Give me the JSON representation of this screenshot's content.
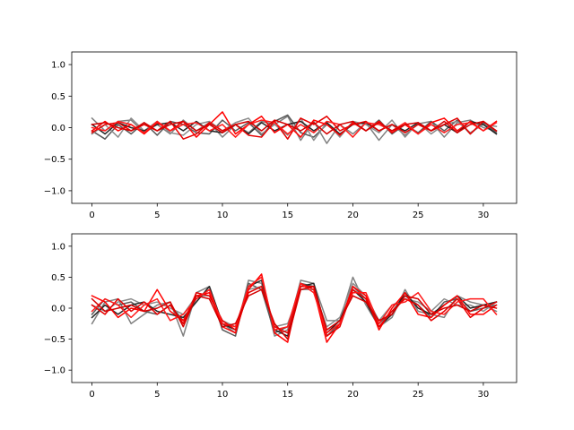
{
  "chart_data": [
    {
      "type": "line",
      "x": [
        0,
        1,
        2,
        3,
        4,
        5,
        6,
        7,
        8,
        9,
        10,
        11,
        12,
        13,
        14,
        15,
        16,
        17,
        18,
        19,
        20,
        21,
        22,
        23,
        24,
        25,
        26,
        27,
        28,
        29,
        30,
        31
      ],
      "xlim": [
        -1.55,
        32.55
      ],
      "ylim": [
        -1.2,
        1.2
      ],
      "xticks": [
        0,
        5,
        10,
        15,
        20,
        25,
        30
      ],
      "yticks": [
        -1.0,
        -0.5,
        0.0,
        0.5,
        1.0
      ],
      "xtick_labels": [
        "0",
        "5",
        "10",
        "15",
        "20",
        "25",
        "30"
      ],
      "ytick_labels": [
        "−1.0",
        "−0.5",
        "0.0",
        "0.5",
        "1.0"
      ],
      "grid": false,
      "series": [
        {
          "color": "#808080",
          "values": [
            0.15,
            -0.05,
            0.1,
            0.12,
            -0.08,
            0.05,
            -0.1,
            0.12,
            -0.05,
            0.08,
            -0.15,
            0.05,
            -0.08,
            0.1,
            0.05,
            0.18,
            -0.2,
            0.1,
            -0.25,
            0.05,
            -0.1,
            0.08,
            -0.2,
            0.05,
            -0.12,
            0.06,
            0.1,
            -0.15,
            0.08,
            0.12,
            0.0,
            -0.05
          ]
        },
        {
          "color": "#595959",
          "values": [
            -0.05,
            -0.18,
            0.05,
            -0.1,
            0.08,
            -0.12,
            0.1,
            0.05,
            -0.08,
            -0.1,
            0.12,
            -0.05,
            0.08,
            -0.12,
            0.1,
            0.2,
            -0.08,
            -0.15,
            0.05,
            -0.12,
            0.08,
            -0.05,
            0.12,
            -0.1,
            0.05,
            -0.08,
            0.1,
            -0.05,
            0.12,
            -0.1,
            0.08,
            -0.08
          ]
        },
        {
          "color": "#8c8c8c",
          "values": [
            -0.1,
            0.05,
            -0.15,
            0.15,
            -0.05,
            0.1,
            -0.08,
            -0.12,
            0.05,
            0.1,
            -0.05,
            0.08,
            0.15,
            -0.1,
            0.05,
            -0.12,
            0.15,
            -0.2,
            0.08,
            -0.15,
            0.1,
            0.05,
            -0.08,
            0.12,
            -0.15,
            0.08,
            -0.1,
            0.05,
            0.1,
            -0.08,
            0.05,
            0.02
          ]
        },
        {
          "color": "#262626",
          "values": [
            0.05,
            -0.1,
            0.08,
            0.0,
            -0.05,
            0.05,
            0.08,
            -0.05,
            0.1,
            -0.05,
            -0.08,
            0.05,
            -0.1,
            0.08,
            -0.05,
            0.05,
            0.1,
            -0.05,
            0.08,
            -0.1,
            0.05,
            0.08,
            -0.05,
            0.05,
            -0.05,
            0.08,
            -0.05,
            0.05,
            -0.08,
            0.1,
            0.05,
            -0.1
          ]
        },
        {
          "color": "#ff0000",
          "values": [
            -0.05,
            0.1,
            -0.05,
            0.05,
            -0.1,
            0.08,
            -0.05,
            0.1,
            -0.15,
            0.05,
            0.25,
            -0.1,
            0.05,
            0.18,
            -0.08,
            0.05,
            -0.15,
            0.12,
            0.05,
            -0.12,
            0.08,
            -0.05,
            0.1,
            -0.08,
            0.05,
            -0.1,
            0.08,
            0.15,
            -0.05,
            0.1,
            -0.05,
            0.1
          ]
        },
        {
          "color": "#e60000",
          "values": [
            -0.08,
            0.05,
            0.08,
            -0.05,
            0.05,
            -0.05,
            0.1,
            -0.18,
            -0.1,
            0.08,
            -0.05,
            0.05,
            -0.12,
            -0.15,
            0.1,
            -0.18,
            0.15,
            0.05,
            0.18,
            -0.05,
            0.05,
            0.1,
            -0.05,
            0.05,
            -0.08,
            0.05,
            -0.05,
            0.05,
            0.15,
            -0.1,
            0.1,
            -0.05
          ]
        },
        {
          "color": "#ff1a1a",
          "values": [
            0.0,
            -0.05,
            0.1,
            0.05,
            -0.08,
            0.1,
            -0.05,
            0.05,
            0.08,
            -0.05,
            0.05,
            -0.15,
            0.05,
            0.12,
            0.08,
            -0.1,
            0.05,
            -0.08,
            0.1,
            0.05,
            -0.15,
            0.08,
            0.05,
            -0.05,
            0.08,
            -0.1,
            0.05,
            -0.08,
            0.05,
            0.08,
            -0.05,
            0.08
          ]
        },
        {
          "color": "#d40000",
          "values": [
            0.05,
            0.08,
            0.0,
            -0.05,
            0.08,
            -0.05,
            0.05,
            0.1,
            -0.05,
            0.05,
            -0.08,
            0.05,
            0.1,
            -0.05,
            0.12,
            0.05,
            -0.05,
            0.08,
            -0.1,
            0.05,
            0.1,
            -0.05,
            0.08,
            -0.05,
            0.05,
            0.08,
            -0.05,
            0.1,
            -0.08,
            0.05,
            0.1,
            -0.05
          ]
        }
      ]
    },
    {
      "type": "line",
      "x": [
        0,
        1,
        2,
        3,
        4,
        5,
        6,
        7,
        8,
        9,
        10,
        11,
        12,
        13,
        14,
        15,
        16,
        17,
        18,
        19,
        20,
        21,
        22,
        23,
        24,
        25,
        26,
        27,
        28,
        29,
        30,
        31
      ],
      "xlim": [
        -1.55,
        32.55
      ],
      "ylim": [
        -1.2,
        1.2
      ],
      "xticks": [
        0,
        5,
        10,
        15,
        20,
        25,
        30
      ],
      "yticks": [
        -1.0,
        -0.5,
        0.0,
        0.5,
        1.0
      ],
      "xtick_labels": [
        "0",
        "5",
        "10",
        "15",
        "20",
        "25",
        "30"
      ],
      "ytick_labels": [
        "−1.0",
        "−0.5",
        "0.0",
        "0.5",
        "1.0"
      ],
      "grid": false,
      "series": [
        {
          "color": "#808080",
          "values": [
            -0.25,
            0.1,
            0.15,
            -0.25,
            -0.1,
            0.05,
            0.1,
            -0.45,
            0.25,
            0.35,
            -0.25,
            -0.4,
            0.45,
            0.4,
            -0.45,
            -0.35,
            0.45,
            0.4,
            -0.2,
            -0.2,
            0.5,
            0.05,
            -0.3,
            -0.15,
            0.3,
            -0.05,
            -0.1,
            -0.15,
            0.2,
            0.1,
            0.05,
            -0.05
          ]
        },
        {
          "color": "#595959",
          "values": [
            -0.1,
            0.15,
            0.05,
            0.1,
            -0.05,
            -0.1,
            0.05,
            -0.2,
            0.15,
            0.3,
            -0.35,
            -0.45,
            0.4,
            0.3,
            -0.4,
            -0.3,
            0.4,
            0.35,
            -0.45,
            -0.25,
            0.35,
            0.15,
            -0.25,
            -0.05,
            0.2,
            0.05,
            -0.15,
            0.1,
            0.15,
            -0.05,
            0.0,
            0.05
          ]
        },
        {
          "color": "#8c8c8c",
          "values": [
            0.05,
            -0.05,
            0.1,
            0.15,
            0.05,
            0.1,
            0.0,
            -0.1,
            0.2,
            0.2,
            -0.2,
            -0.3,
            0.3,
            0.35,
            -0.3,
            -0.25,
            0.3,
            0.3,
            -0.3,
            -0.15,
            0.4,
            0.2,
            -0.2,
            0.05,
            0.15,
            0.1,
            -0.05,
            0.15,
            0.05,
            0.05,
            -0.05,
            0.1
          ]
        },
        {
          "color": "#262626",
          "values": [
            -0.15,
            0.05,
            -0.1,
            0.05,
            0.1,
            -0.05,
            -0.1,
            -0.15,
            0.1,
            0.35,
            -0.25,
            -0.35,
            0.35,
            0.45,
            -0.35,
            -0.45,
            0.35,
            0.4,
            -0.4,
            -0.2,
            0.3,
            0.1,
            -0.3,
            -0.1,
            0.25,
            0.0,
            -0.1,
            0.05,
            0.2,
            0.0,
            0.05,
            0.1
          ]
        },
        {
          "color": "#ff0000",
          "values": [
            0.2,
            0.1,
            -0.15,
            0.0,
            -0.05,
            0.3,
            -0.05,
            -0.2,
            0.2,
            0.25,
            -0.3,
            -0.4,
            0.3,
            0.55,
            -0.4,
            -0.55,
            0.4,
            0.3,
            -0.55,
            -0.25,
            0.35,
            0.2,
            -0.35,
            0.0,
            0.25,
            -0.1,
            -0.15,
            0.05,
            0.2,
            -0.1,
            -0.1,
            0.05
          ]
        },
        {
          "color": "#e60000",
          "values": [
            0.05,
            -0.1,
            0.15,
            -0.05,
            0.1,
            -0.1,
            0.05,
            -0.25,
            0.25,
            0.2,
            -0.2,
            -0.35,
            0.25,
            0.35,
            -0.3,
            -0.4,
            0.35,
            0.35,
            -0.45,
            -0.3,
            0.3,
            0.15,
            -0.3,
            -0.05,
            0.15,
            0.05,
            -0.2,
            -0.05,
            0.15,
            -0.15,
            0.0,
            0.1
          ]
        },
        {
          "color": "#ff1a1a",
          "values": [
            -0.05,
            0.15,
            0.05,
            -0.15,
            0.05,
            0.15,
            -0.2,
            -0.1,
            0.15,
            0.3,
            -0.25,
            -0.3,
            0.35,
            0.5,
            -0.35,
            -0.3,
            0.4,
            0.25,
            -0.4,
            -0.25,
            0.25,
            0.25,
            -0.25,
            0.05,
            0.1,
            0.25,
            -0.05,
            -0.1,
            0.1,
            0.15,
            0.15,
            -0.1
          ]
        },
        {
          "color": "#d40000",
          "values": [
            0.15,
            -0.05,
            0.0,
            0.05,
            -0.05,
            0.0,
            0.1,
            -0.3,
            0.2,
            0.15,
            -0.3,
            -0.25,
            0.2,
            0.3,
            -0.25,
            -0.5,
            0.3,
            0.35,
            -0.35,
            -0.2,
            0.2,
            0.1,
            -0.2,
            -0.1,
            0.2,
            0.15,
            -0.1,
            0.0,
            0.05,
            -0.05,
            0.05,
            0.0
          ]
        }
      ]
    }
  ]
}
